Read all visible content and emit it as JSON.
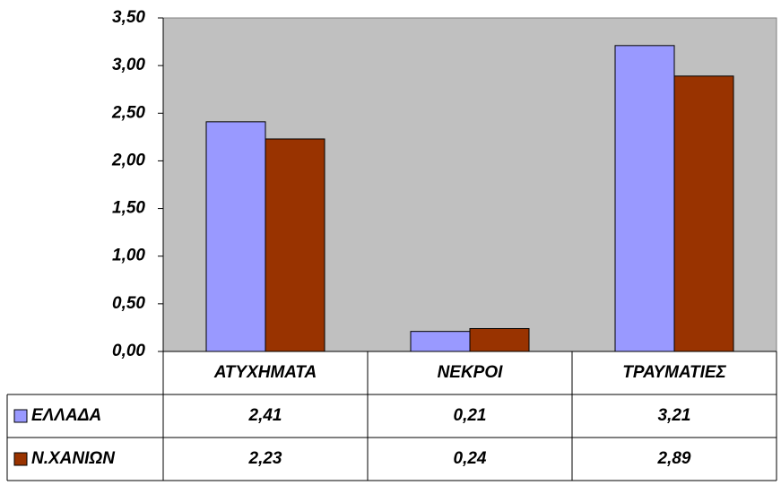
{
  "chart_data": {
    "type": "bar",
    "categories": [
      "ΑΤΥΧΗΜΑΤΑ",
      "ΝΕΚΡΟΙ",
      "ΤΡΑΥΜΑΤΙΕΣ"
    ],
    "series": [
      {
        "name": "ΕΛΛΑΔΑ",
        "color": "#9999ff",
        "values": [
          2.41,
          0.21,
          3.21
        ],
        "value_labels": [
          "2,41",
          "0,21",
          "3,21"
        ]
      },
      {
        "name": "Ν.ΧΑΝΙΩΝ",
        "color": "#993300",
        "values": [
          2.23,
          0.24,
          2.89
        ],
        "value_labels": [
          "2,23",
          "0,24",
          "2,89"
        ]
      }
    ],
    "ylim": [
      0,
      3.5
    ],
    "yticks": [
      {
        "value": 0,
        "label": "0,00"
      },
      {
        "value": 0.5,
        "label": "0,50"
      },
      {
        "value": 1,
        "label": "1,00"
      },
      {
        "value": 1.5,
        "label": "1,50"
      },
      {
        "value": 2,
        "label": "2,00"
      },
      {
        "value": 2.5,
        "label": "2,50"
      },
      {
        "value": 3,
        "label": "3,00"
      },
      {
        "value": 3.5,
        "label": "3,50"
      }
    ],
    "grid": false,
    "plot_background": "#c0c0c0"
  }
}
